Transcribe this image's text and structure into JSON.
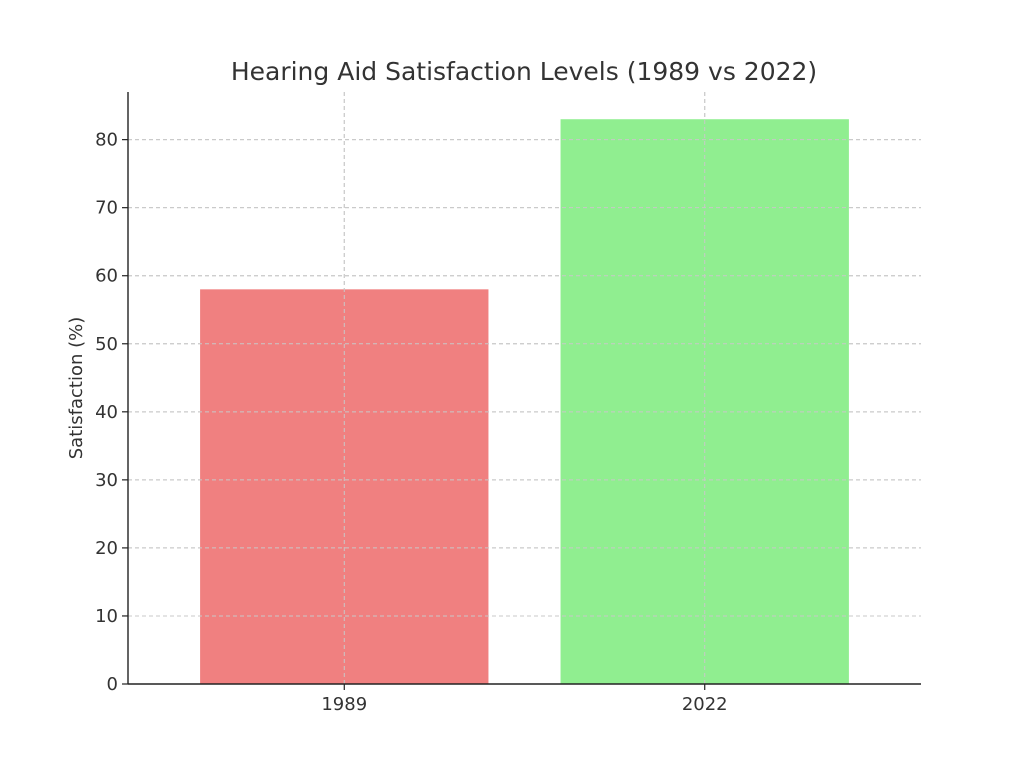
{
  "chart_data": {
    "type": "bar",
    "title": "Hearing Aid Satisfaction Levels (1989 vs 2022)",
    "xlabel": "",
    "ylabel": "Satisfaction (%)",
    "categories": [
      "1989",
      "2022"
    ],
    "values": [
      58,
      83
    ],
    "colors": [
      "#f08080",
      "#90ee90"
    ],
    "ylim": [
      0,
      87
    ],
    "yticks": [
      0,
      10,
      20,
      30,
      40,
      50,
      60,
      70,
      80
    ],
    "grid": true,
    "grid_style": "dashed",
    "legend": "none"
  }
}
